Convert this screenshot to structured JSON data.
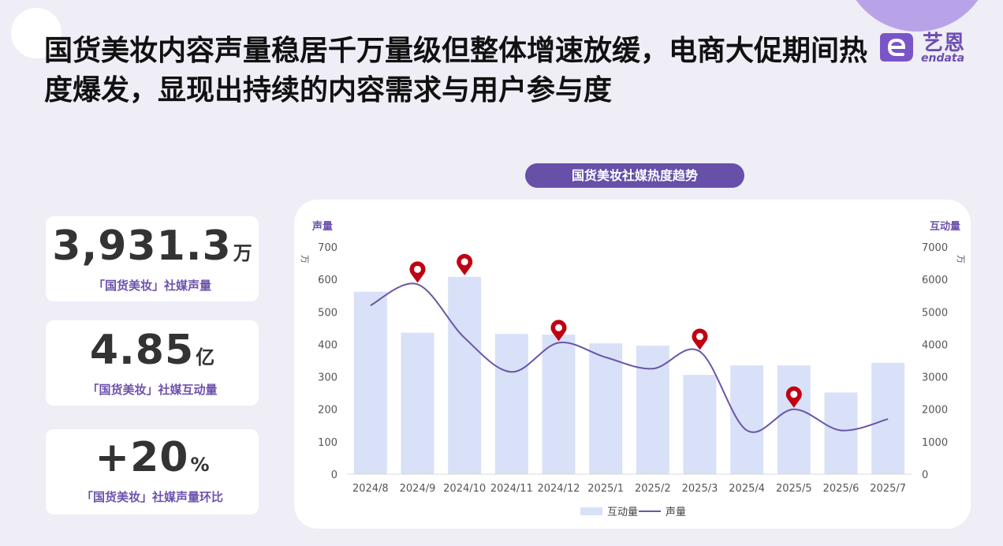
{
  "headline": "国货美妆内容声量稳居千万量级但整体增速放缓，电商大促期间热度爆发，显现出持续的内容需求与用户参与度",
  "logo": {
    "cn": "艺恩",
    "en": "endata"
  },
  "colors": {
    "accent": "#6650a8",
    "bar": "#d9e1f8",
    "line": "#6a55a8",
    "pin": "#c00012"
  },
  "stats": [
    {
      "value": "3,931.3",
      "unit": "万",
      "label": "「国货美妆」社媒声量"
    },
    {
      "value": "4.85",
      "unit": "亿",
      "label": "「国货美妆」社媒互动量"
    },
    {
      "value": "+20",
      "unit": "%",
      "label": "「国货美妆」社媒声量环比"
    }
  ],
  "chart_title": "国货美妆社媒热度趋势",
  "chart_data": {
    "type": "bar+line",
    "categories": [
      "2024/8",
      "2024/9",
      "2024/10",
      "2024/11",
      "2024/12",
      "2025/1",
      "2025/2",
      "2025/3",
      "2025/4",
      "2025/5",
      "2025/6",
      "2025/7"
    ],
    "series": [
      {
        "name": "互动量",
        "type": "bar",
        "axis": "right",
        "values": [
          5620,
          4360,
          6080,
          4320,
          4300,
          4030,
          3960,
          3060,
          3350,
          3350,
          2520,
          3430
        ]
      },
      {
        "name": "声量",
        "type": "line",
        "axis": "left",
        "values": [
          520,
          585,
          420,
          315,
          405,
          360,
          325,
          378,
          135,
          200,
          135,
          170
        ]
      }
    ],
    "left_axis": {
      "label": "声量",
      "unit": "万",
      "ticks": [
        0,
        100,
        200,
        300,
        400,
        500,
        600,
        700
      ],
      "ylim": [
        0,
        700
      ]
    },
    "right_axis": {
      "label": "互动量",
      "unit": "万",
      "ticks": [
        0,
        1000,
        2000,
        3000,
        4000,
        5000,
        6000,
        7000
      ],
      "ylim": [
        0,
        7000
      ]
    },
    "highlights": [
      {
        "category": "2024/9",
        "series": "声量"
      },
      {
        "category": "2024/10",
        "series": "互动量"
      },
      {
        "category": "2024/12",
        "series": "声量"
      },
      {
        "category": "2025/3",
        "series": "声量"
      },
      {
        "category": "2025/5",
        "series": "声量"
      }
    ],
    "legend_position": "bottom"
  }
}
